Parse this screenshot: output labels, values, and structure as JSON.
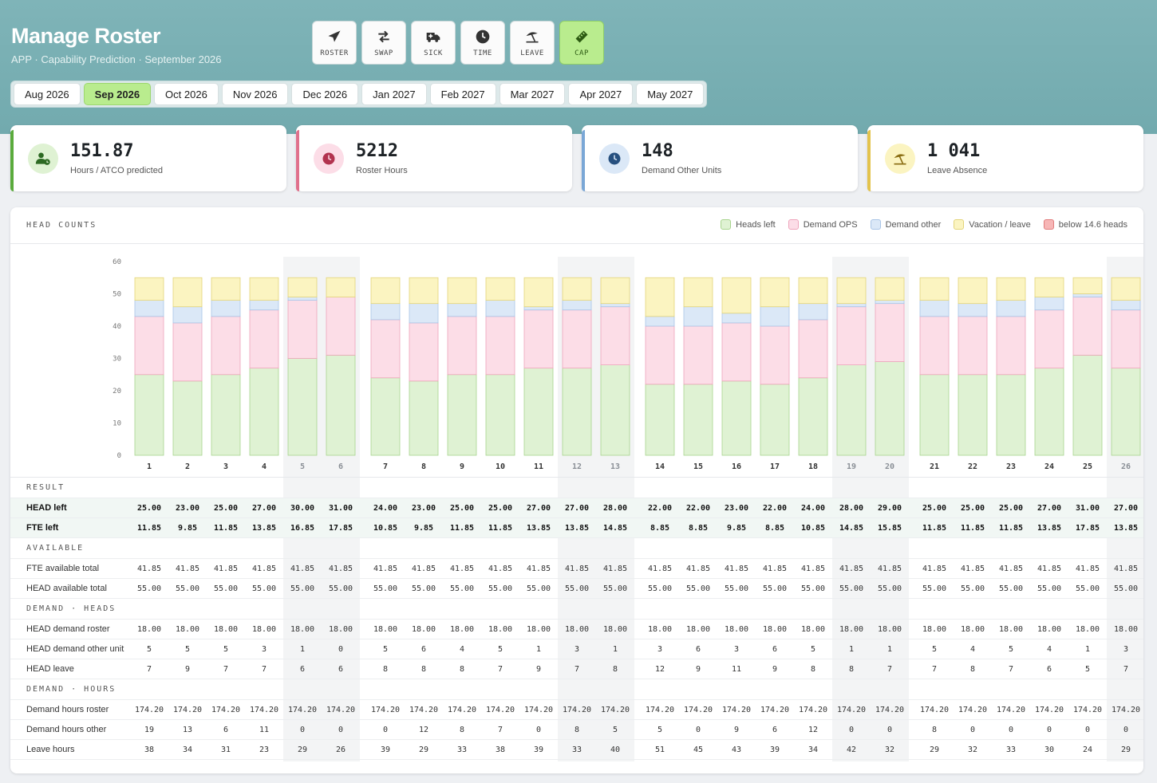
{
  "header": {
    "title": "Manage Roster",
    "subtitle": "APP · Capability Prediction · September 2026"
  },
  "tools": [
    {
      "label": "ROSTER",
      "icon": "paper-plane-icon",
      "active": false
    },
    {
      "label": "SWAP",
      "icon": "swap-arrows-icon",
      "active": false
    },
    {
      "label": "SICK",
      "icon": "ambulance-icon",
      "active": false
    },
    {
      "label": "TIME",
      "icon": "clock-icon",
      "active": false
    },
    {
      "label": "LEAVE",
      "icon": "umbrella-beach-icon",
      "active": false
    },
    {
      "label": "CAP",
      "icon": "ruler-icon",
      "active": true
    }
  ],
  "months": [
    "Aug 2026",
    "Sep 2026",
    "Oct 2026",
    "Nov 2026",
    "Dec 2026",
    "Jan 2027",
    "Feb 2027",
    "Mar 2027",
    "Apr 2027",
    "May 2027"
  ],
  "selected_month": "Sep 2026",
  "kpis": [
    {
      "value": "151.87",
      "label": "Hours / ATCO predicted",
      "icon": "user-clock-icon",
      "color": "#5aab3c"
    },
    {
      "value": "5212",
      "label": "Roster Hours",
      "icon": "clock-icon",
      "color": "#e0708c"
    },
    {
      "value": "148",
      "label": "Demand Other Units",
      "icon": "clock-icon",
      "color": "#7aa7d6"
    },
    {
      "value": "1 041",
      "label": "Leave Absence",
      "icon": "umbrella-beach-icon",
      "color": "#e3c34c"
    }
  ],
  "panel": {
    "title": "HEAD COUNTS",
    "legend": [
      {
        "label": "Heads left",
        "color": "#dff2d3",
        "border": "#a8d48e"
      },
      {
        "label": "Demand OPS",
        "color": "#fcdde7",
        "border": "#eea4bb"
      },
      {
        "label": "Demand other",
        "color": "#dbe8f7",
        "border": "#a9c4e6"
      },
      {
        "label": "Vacation / leave",
        "color": "#fbf4c1",
        "border": "#e3d47a"
      },
      {
        "label": "below 14.6 heads",
        "color": "#f7b6b6",
        "border": "#e07c7c"
      }
    ]
  },
  "chart_data": {
    "type": "bar",
    "stacked": true,
    "ylim": [
      0,
      60
    ],
    "yticks": [
      0,
      10,
      20,
      30,
      40,
      50,
      60
    ],
    "categories": [
      "1",
      "2",
      "3",
      "4",
      "5",
      "6",
      "7",
      "8",
      "9",
      "10",
      "11",
      "12",
      "13",
      "14",
      "15",
      "16",
      "17",
      "18",
      "19",
      "20",
      "21",
      "22",
      "23",
      "24",
      "25",
      "26"
    ],
    "weekend_days": [
      "5",
      "6",
      "12",
      "13",
      "19",
      "20",
      "26"
    ],
    "series": [
      {
        "name": "Heads left",
        "values": [
          25,
          23,
          25,
          27,
          30,
          31,
          24,
          23,
          25,
          25,
          27,
          27,
          28,
          22,
          22,
          23,
          22,
          24,
          28,
          29,
          25,
          25,
          25,
          27,
          31,
          27
        ]
      },
      {
        "name": "Demand OPS",
        "values": [
          18,
          18,
          18,
          18,
          18,
          18,
          18,
          18,
          18,
          18,
          18,
          18,
          18,
          18,
          18,
          18,
          18,
          18,
          18,
          18,
          18,
          18,
          18,
          18,
          18,
          18
        ]
      },
      {
        "name": "Demand other",
        "values": [
          5,
          5,
          5,
          3,
          1,
          0,
          5,
          6,
          4,
          5,
          1,
          3,
          1,
          3,
          6,
          3,
          6,
          5,
          1,
          1,
          5,
          4,
          5,
          4,
          1,
          3
        ]
      },
      {
        "name": "Vacation / leave",
        "values": [
          7,
          9,
          7,
          7,
          6,
          6,
          8,
          8,
          8,
          7,
          9,
          7,
          8,
          12,
          9,
          11,
          9,
          8,
          8,
          7,
          7,
          8,
          7,
          6,
          5,
          7
        ]
      }
    ]
  },
  "table": {
    "sections": [
      {
        "title": "RESULT",
        "rows": [
          {
            "label": "HEAD left",
            "kind": "result",
            "values": [
              "25.00",
              "23.00",
              "25.00",
              "27.00",
              "30.00",
              "31.00",
              "24.00",
              "23.00",
              "25.00",
              "25.00",
              "27.00",
              "27.00",
              "28.00",
              "22.00",
              "22.00",
              "23.00",
              "22.00",
              "24.00",
              "28.00",
              "29.00",
              "25.00",
              "25.00",
              "25.00",
              "27.00",
              "31.00",
              "27.00"
            ]
          },
          {
            "label": "FTE left",
            "kind": "result",
            "values": [
              "11.85",
              "9.85",
              "11.85",
              "13.85",
              "16.85",
              "17.85",
              "10.85",
              "9.85",
              "11.85",
              "11.85",
              "13.85",
              "13.85",
              "14.85",
              "8.85",
              "8.85",
              "9.85",
              "8.85",
              "10.85",
              "14.85",
              "15.85",
              "11.85",
              "11.85",
              "11.85",
              "13.85",
              "17.85",
              "13.85"
            ]
          }
        ]
      },
      {
        "title": "AVAILABLE",
        "rows": [
          {
            "label": "FTE available total",
            "kind": "plain",
            "values": [
              "41.85",
              "41.85",
              "41.85",
              "41.85",
              "41.85",
              "41.85",
              "41.85",
              "41.85",
              "41.85",
              "41.85",
              "41.85",
              "41.85",
              "41.85",
              "41.85",
              "41.85",
              "41.85",
              "41.85",
              "41.85",
              "41.85",
              "41.85",
              "41.85",
              "41.85",
              "41.85",
              "41.85",
              "41.85",
              "41.85"
            ]
          },
          {
            "label": "HEAD available total",
            "kind": "plain",
            "values": [
              "55.00",
              "55.00",
              "55.00",
              "55.00",
              "55.00",
              "55.00",
              "55.00",
              "55.00",
              "55.00",
              "55.00",
              "55.00",
              "55.00",
              "55.00",
              "55.00",
              "55.00",
              "55.00",
              "55.00",
              "55.00",
              "55.00",
              "55.00",
              "55.00",
              "55.00",
              "55.00",
              "55.00",
              "55.00",
              "55.00"
            ]
          }
        ]
      },
      {
        "title": "DEMAND · HEADS",
        "rows": [
          {
            "label": "HEAD demand roster",
            "kind": "plain",
            "values": [
              "18.00",
              "18.00",
              "18.00",
              "18.00",
              "18.00",
              "18.00",
              "18.00",
              "18.00",
              "18.00",
              "18.00",
              "18.00",
              "18.00",
              "18.00",
              "18.00",
              "18.00",
              "18.00",
              "18.00",
              "18.00",
              "18.00",
              "18.00",
              "18.00",
              "18.00",
              "18.00",
              "18.00",
              "18.00",
              "18.00"
            ]
          },
          {
            "label": "HEAD demand other unit",
            "kind": "plain",
            "values": [
              "5",
              "5",
              "5",
              "3",
              "1",
              "0",
              "5",
              "6",
              "4",
              "5",
              "1",
              "3",
              "1",
              "3",
              "6",
              "3",
              "6",
              "5",
              "1",
              "1",
              "5",
              "4",
              "5",
              "4",
              "1",
              "3"
            ]
          },
          {
            "label": "HEAD leave",
            "kind": "plain",
            "values": [
              "7",
              "9",
              "7",
              "7",
              "6",
              "6",
              "8",
              "8",
              "8",
              "7",
              "9",
              "7",
              "8",
              "12",
              "9",
              "11",
              "9",
              "8",
              "8",
              "7",
              "7",
              "8",
              "7",
              "6",
              "5",
              "7"
            ]
          }
        ]
      },
      {
        "title": "DEMAND · HOURS",
        "rows": [
          {
            "label": "Demand hours roster",
            "kind": "plain",
            "values": [
              "174.20",
              "174.20",
              "174.20",
              "174.20",
              "174.20",
              "174.20",
              "174.20",
              "174.20",
              "174.20",
              "174.20",
              "174.20",
              "174.20",
              "174.20",
              "174.20",
              "174.20",
              "174.20",
              "174.20",
              "174.20",
              "174.20",
              "174.20",
              "174.20",
              "174.20",
              "174.20",
              "174.20",
              "174.20",
              "174.20"
            ]
          },
          {
            "label": "Demand hours other",
            "kind": "plain",
            "values": [
              "19",
              "13",
              "6",
              "11",
              "0",
              "0",
              "0",
              "12",
              "8",
              "7",
              "0",
              "8",
              "5",
              "5",
              "0",
              "9",
              "6",
              "12",
              "0",
              "0",
              "8",
              "0",
              "0",
              "0",
              "0",
              "0"
            ]
          },
          {
            "label": "Leave hours",
            "kind": "plain",
            "values": [
              "38",
              "34",
              "31",
              "23",
              "29",
              "26",
              "39",
              "29",
              "33",
              "38",
              "39",
              "33",
              "40",
              "51",
              "45",
              "43",
              "39",
              "34",
              "42",
              "32",
              "29",
              "32",
              "33",
              "30",
              "24",
              "29"
            ]
          }
        ]
      }
    ]
  }
}
